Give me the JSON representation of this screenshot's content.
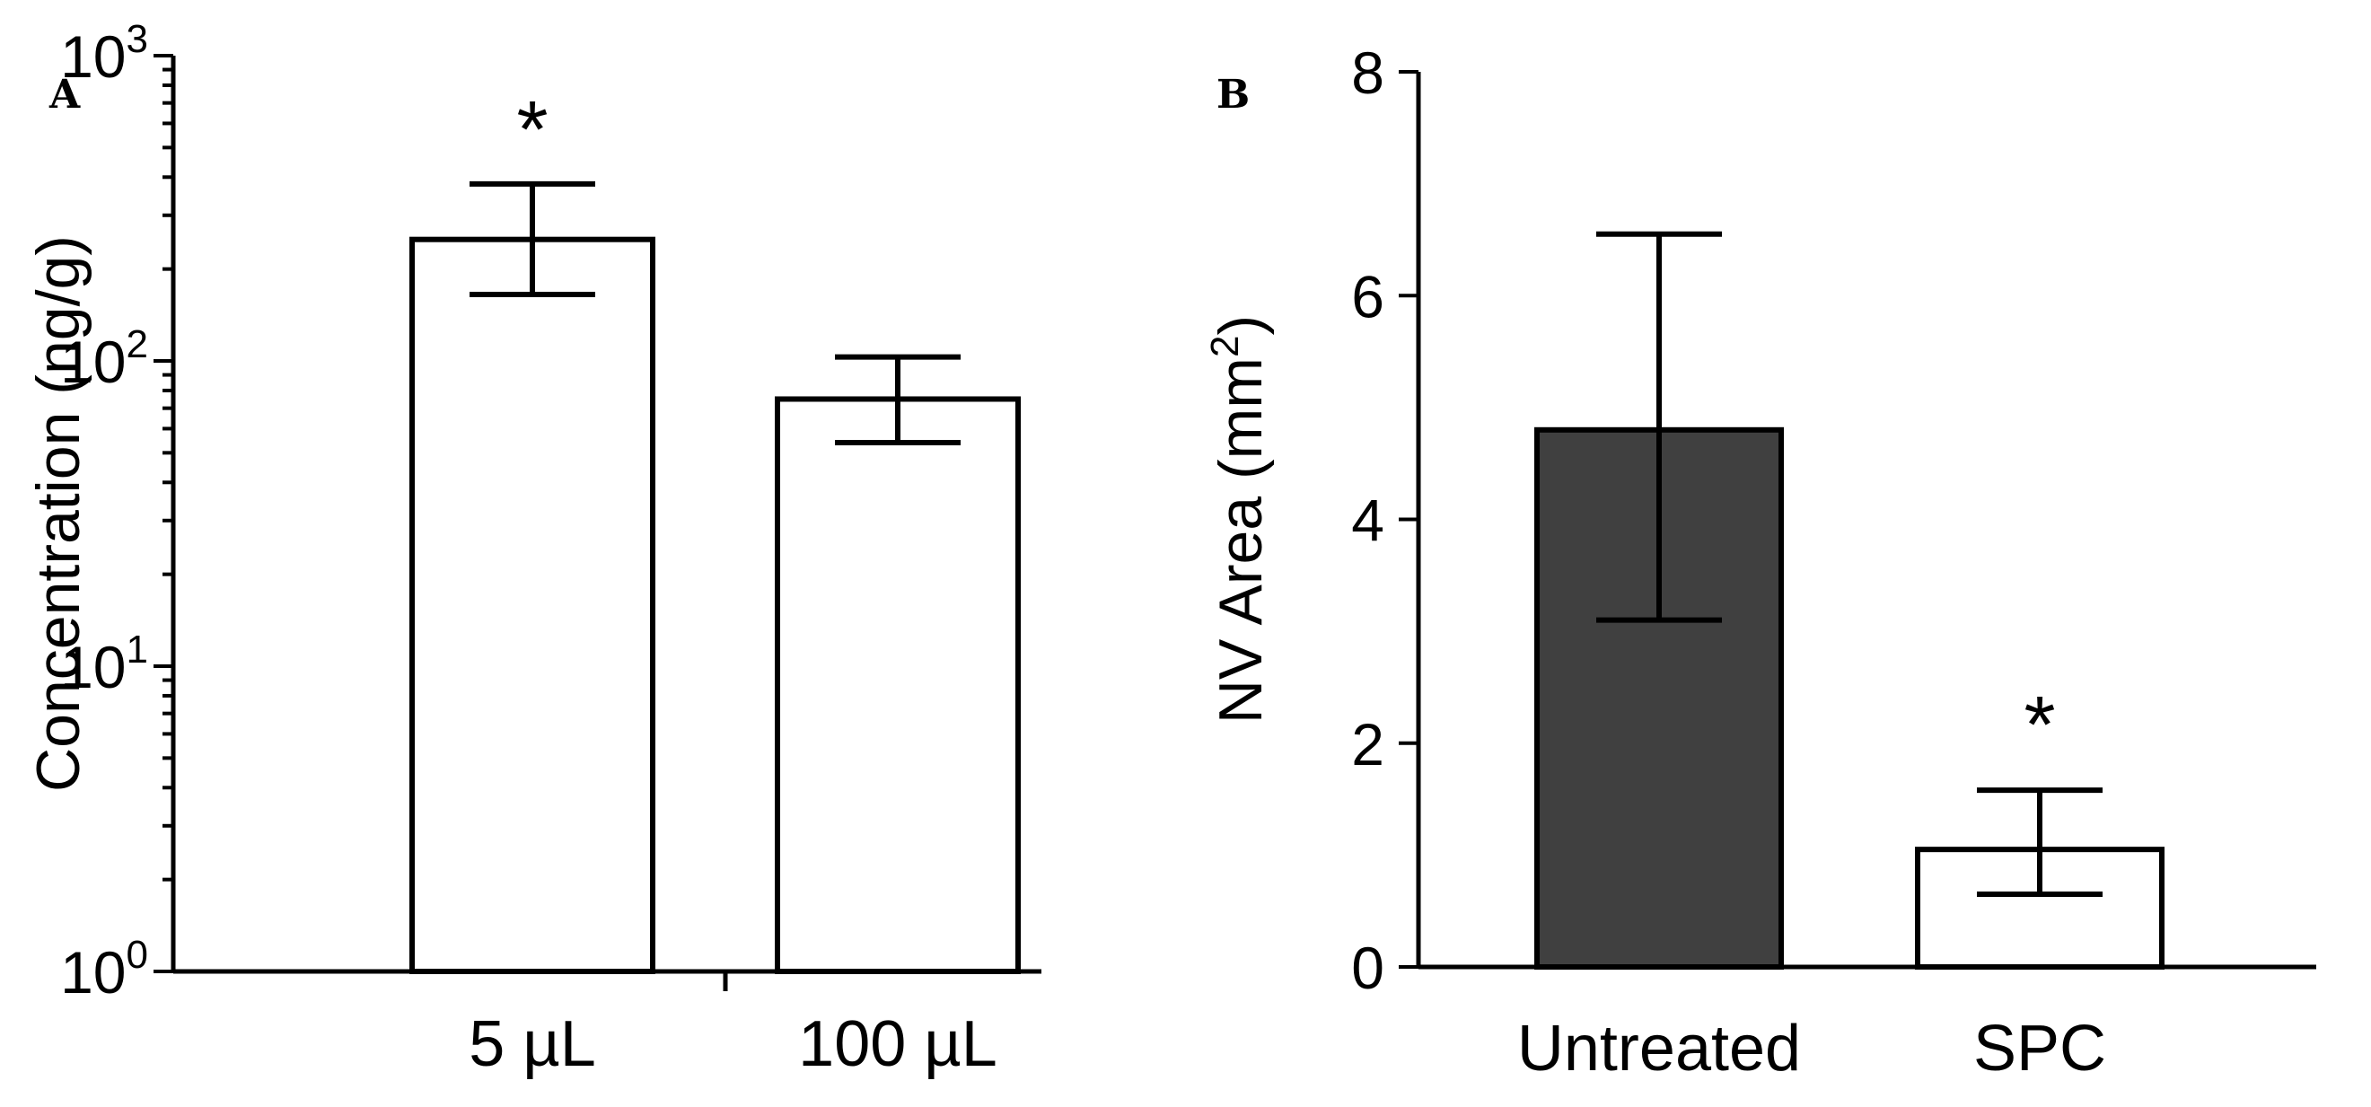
{
  "chart_data": [
    {
      "panel": "A",
      "type": "bar",
      "yscale": "log",
      "ylabel": "Concentration (ng/g)",
      "xlabel": "",
      "categories": [
        "5 µL",
        "100 µL"
      ],
      "values": [
        250,
        75
      ],
      "error_low": [
        165,
        54
      ],
      "error_high": [
        380,
        103
      ],
      "bar_fills": [
        "#ffffff",
        "#ffffff"
      ],
      "significance": [
        "*",
        ""
      ],
      "ylim": [
        1,
        1000
      ],
      "yticks": [
        {
          "value": 1,
          "base": "10",
          "exp": "0"
        },
        {
          "value": 10,
          "base": "10",
          "exp": "1"
        },
        {
          "value": 100,
          "base": "10",
          "exp": "2"
        },
        {
          "value": 1000,
          "base": "10",
          "exp": "3"
        }
      ],
      "grid": false
    },
    {
      "panel": "B",
      "type": "bar",
      "yscale": "linear",
      "ylabel_main": "NV Area (mm",
      "ylabel_sup": "2",
      "ylabel_end": ")",
      "xlabel": "",
      "categories": [
        "Untreated",
        "SPC"
      ],
      "values": [
        4.8,
        1.05
      ],
      "error_low": [
        3.1,
        0.65
      ],
      "error_high": [
        6.55,
        1.58
      ],
      "bar_fills": [
        "#404040",
        "#ffffff"
      ],
      "significance": [
        "",
        "*"
      ],
      "ylim": [
        0,
        8
      ],
      "yticks": [
        0,
        2,
        4,
        6,
        8
      ],
      "grid": false
    }
  ]
}
